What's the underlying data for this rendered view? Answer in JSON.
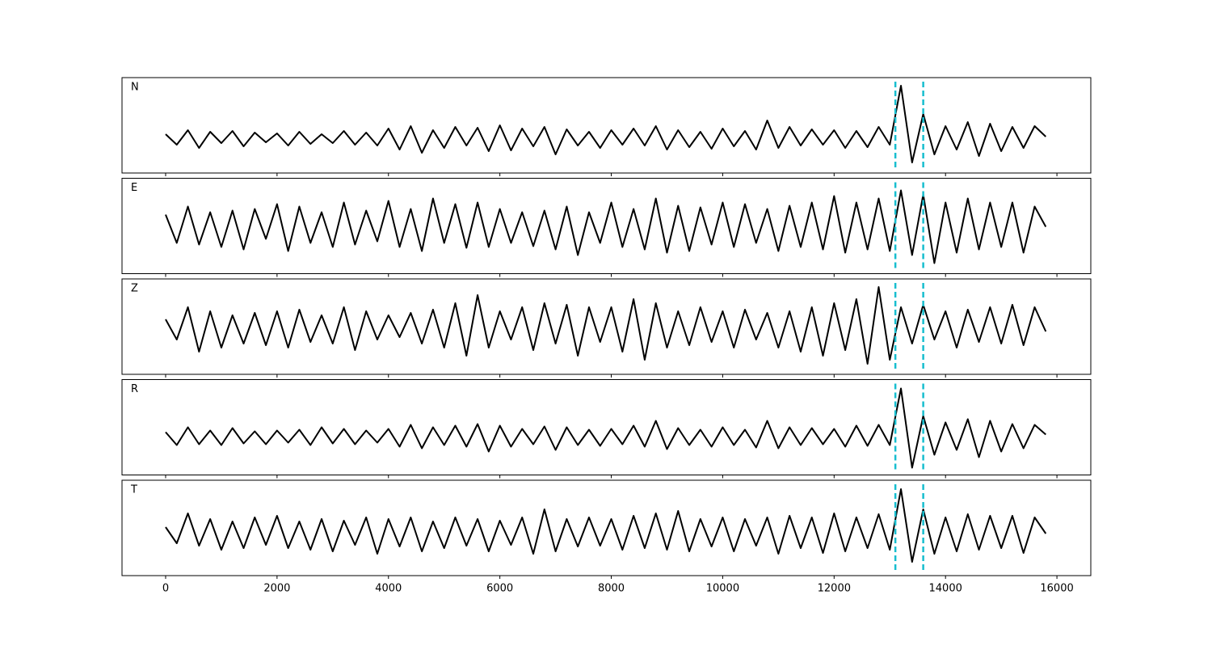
{
  "chart_data": {
    "type": "line",
    "subplots": true,
    "x": [
      0,
      200,
      400,
      600,
      800,
      1000,
      1200,
      1400,
      1600,
      1800,
      2000,
      2200,
      2400,
      2600,
      2800,
      3000,
      3200,
      3400,
      3600,
      3800,
      4000,
      4200,
      4400,
      4600,
      4800,
      5000,
      5200,
      5400,
      5600,
      5800,
      6000,
      6200,
      6400,
      6600,
      6800,
      7000,
      7200,
      7400,
      7600,
      7800,
      8000,
      8200,
      8400,
      8600,
      8800,
      9000,
      9200,
      9400,
      9600,
      9800,
      10000,
      10200,
      10400,
      10600,
      10800,
      11000,
      11200,
      11400,
      11600,
      11800,
      12000,
      12200,
      12400,
      12600,
      12800,
      13000,
      13200,
      13400,
      13600,
      13800,
      14000,
      14200,
      14400,
      14600,
      14800,
      15000,
      15200,
      15400,
      15600,
      15800
    ],
    "xlim": [
      -783,
      16608
    ],
    "xticks": [
      0,
      2000,
      4000,
      6000,
      8000,
      10000,
      12000,
      14000,
      16000
    ],
    "vlines": [
      13100,
      13600
    ],
    "vline_color": "#17becf",
    "series": [
      {
        "name": "N",
        "color": "#000000",
        "ylim": [
          -43,
          75
        ],
        "values": [
          5,
          -8,
          10,
          -12,
          8,
          -6,
          9,
          -10,
          7,
          -5,
          6,
          -9,
          8,
          -7,
          5,
          -6,
          9,
          -8,
          7,
          -9,
          12,
          -14,
          15,
          -18,
          10,
          -12,
          14,
          -9,
          13,
          -16,
          16,
          -15,
          12,
          -10,
          14,
          -20,
          11,
          -9,
          8,
          -12,
          10,
          -8,
          12,
          -9,
          15,
          -14,
          10,
          -11,
          8,
          -13,
          12,
          -10,
          9,
          -14,
          22,
          -12,
          14,
          -9,
          11,
          -8,
          10,
          -12,
          9,
          -11,
          14,
          -8,
          65,
          -30,
          30,
          -20,
          15,
          -14,
          20,
          -22,
          18,
          -16,
          14,
          -12,
          15,
          2
        ]
      },
      {
        "name": "E",
        "color": "#000000",
        "ylim": [
          -58,
          60
        ],
        "values": [
          15,
          -20,
          25,
          -22,
          18,
          -25,
          20,
          -28,
          22,
          -15,
          28,
          -30,
          25,
          -20,
          18,
          -25,
          30,
          -22,
          20,
          -18,
          32,
          -25,
          22,
          -30,
          35,
          -20,
          28,
          -26,
          30,
          -25,
          22,
          -20,
          18,
          -24,
          20,
          -28,
          25,
          -35,
          18,
          -20,
          30,
          -25,
          22,
          -28,
          35,
          -32,
          26,
          -30,
          24,
          -22,
          30,
          -25,
          28,
          -20,
          22,
          -30,
          26,
          -25,
          30,
          -28,
          38,
          -32,
          30,
          -28,
          35,
          -30,
          45,
          -35,
          40,
          -45,
          30,
          -32,
          35,
          -28,
          30,
          -25,
          30,
          -32,
          25,
          0
        ]
      },
      {
        "name": "Z",
        "color": "#000000",
        "ylim": [
          -58,
          60
        ],
        "values": [
          10,
          -15,
          25,
          -30,
          20,
          -25,
          15,
          -20,
          18,
          -22,
          20,
          -25,
          22,
          -18,
          15,
          -20,
          25,
          -28,
          20,
          -15,
          15,
          -12,
          18,
          -20,
          22,
          -25,
          30,
          -35,
          40,
          -25,
          20,
          -15,
          25,
          -28,
          30,
          -20,
          28,
          -35,
          25,
          -18,
          25,
          -30,
          35,
          -40,
          30,
          -25,
          20,
          -22,
          25,
          -18,
          20,
          -25,
          22,
          -15,
          18,
          -25,
          20,
          -30,
          25,
          -35,
          30,
          -28,
          35,
          -45,
          50,
          -40,
          25,
          -20,
          28,
          -15,
          20,
          -25,
          22,
          -18,
          25,
          -20,
          28,
          -22,
          25,
          -5
        ]
      },
      {
        "name": "R",
        "color": "#000000",
        "ylim": [
          -47,
          71
        ],
        "values": [
          6,
          -10,
          12,
          -9,
          8,
          -10,
          11,
          -8,
          7,
          -9,
          8,
          -7,
          9,
          -10,
          12,
          -8,
          10,
          -9,
          8,
          -7,
          10,
          -12,
          15,
          -14,
          12,
          -10,
          14,
          -12,
          16,
          -18,
          14,
          -12,
          10,
          -9,
          13,
          -16,
          12,
          -10,
          9,
          -11,
          10,
          -9,
          14,
          -12,
          20,
          -15,
          11,
          -10,
          9,
          -12,
          12,
          -10,
          9,
          -13,
          20,
          -14,
          12,
          -10,
          11,
          -9,
          10,
          -12,
          14,
          -11,
          15,
          -10,
          60,
          -38,
          26,
          -22,
          18,
          -16,
          22,
          -25,
          20,
          -18,
          16,
          -14,
          15,
          3
        ]
      },
      {
        "name": "T",
        "color": "#000000",
        "ylim": [
          -52,
          66
        ],
        "values": [
          8,
          -12,
          25,
          -15,
          18,
          -20,
          15,
          -18,
          20,
          -14,
          22,
          -18,
          15,
          -20,
          18,
          -22,
          16,
          -14,
          20,
          -25,
          18,
          -16,
          20,
          -22,
          15,
          -18,
          20,
          -15,
          18,
          -22,
          16,
          -14,
          20,
          -25,
          30,
          -22,
          18,
          -16,
          20,
          -15,
          18,
          -20,
          22,
          -18,
          25,
          -20,
          28,
          -22,
          18,
          -16,
          20,
          -22,
          18,
          -15,
          20,
          -25,
          22,
          -18,
          20,
          -24,
          25,
          -22,
          20,
          -18,
          24,
          -20,
          55,
          -35,
          30,
          -25,
          20,
          -22,
          24,
          -20,
          22,
          -18,
          22,
          -24,
          20,
          0
        ]
      }
    ]
  }
}
